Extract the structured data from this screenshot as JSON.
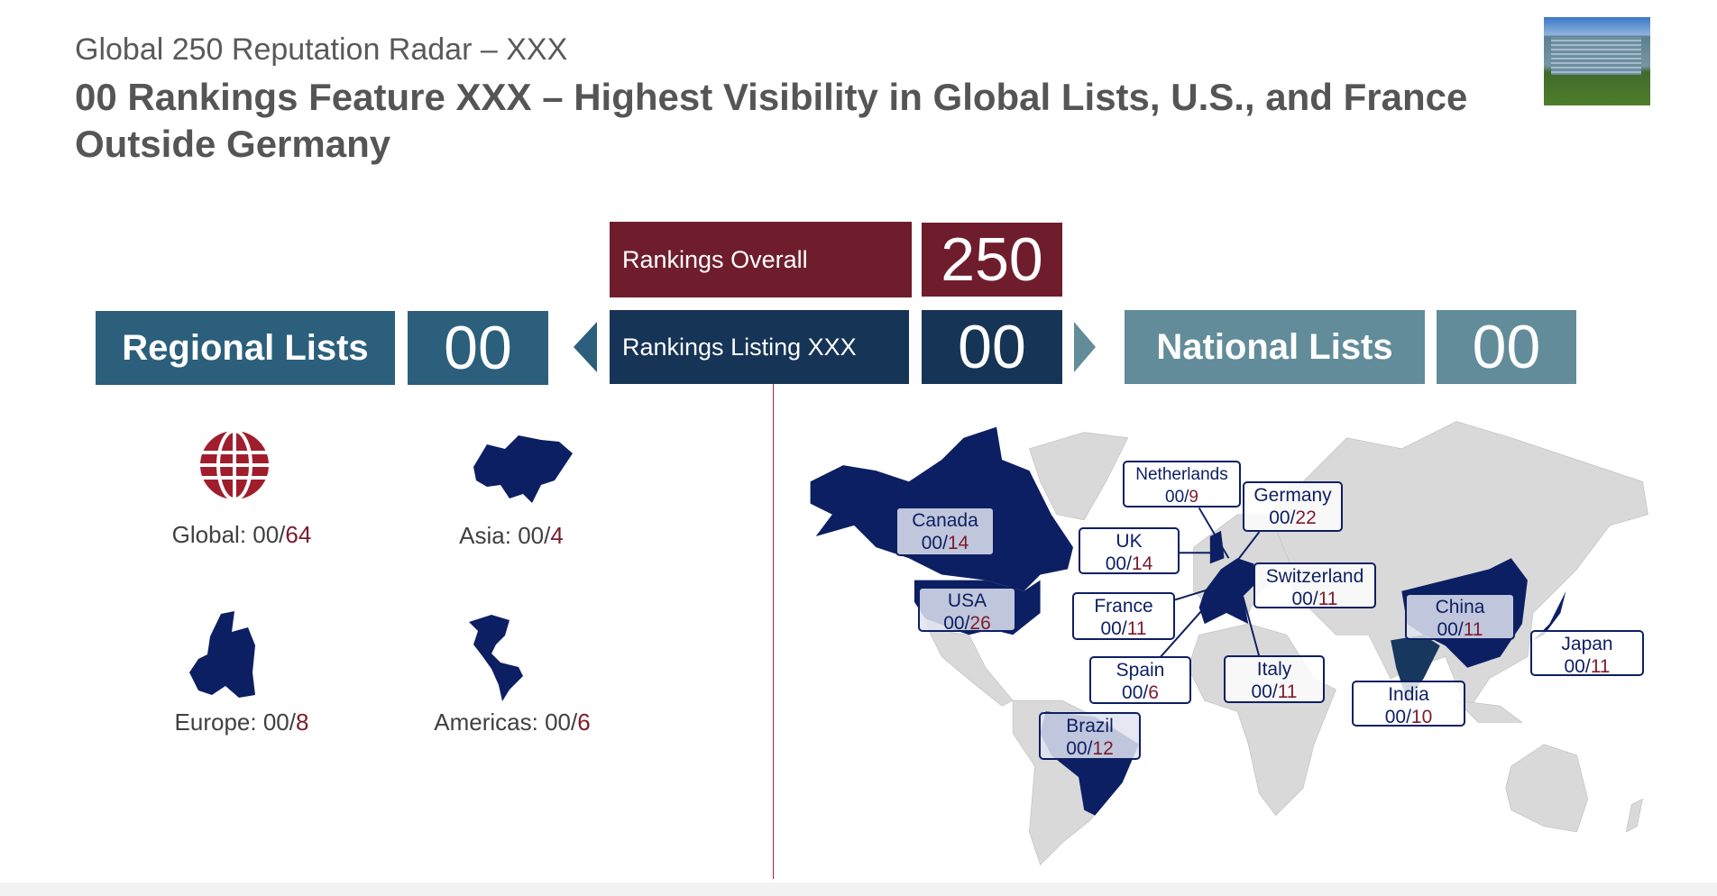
{
  "header": {
    "subtitle": "Global 250 Reputation Radar – XXX",
    "title": "00 Rankings Feature XXX – Highest Visibility in Global Lists, U.S., and France Outside Germany"
  },
  "summary": {
    "overall_label": "Rankings Overall",
    "overall_value": "250",
    "listing_label": "Rankings Listing XXX",
    "listing_value": "00",
    "regional_label": "Regional Lists",
    "regional_value": "00",
    "national_label": "National Lists",
    "national_value": "00"
  },
  "regions": [
    {
      "name": "Global: ",
      "count": "00/",
      "total": "64",
      "icon": "globe-icon"
    },
    {
      "name": "Asia: ",
      "count": "00/",
      "total": "4",
      "icon": "asia-map-icon"
    },
    {
      "name": "Europe: ",
      "count": "00/",
      "total": "8",
      "icon": "europe-map-icon"
    },
    {
      "name": "Americas: ",
      "count": "00/",
      "total": "6",
      "icon": "americas-map-icon"
    }
  ],
  "countries": [
    {
      "name": "Canada",
      "count": "00/",
      "total": "14"
    },
    {
      "name": "USA",
      "count": "00/",
      "total": "26"
    },
    {
      "name": "Netherlands",
      "count": "00/",
      "total": "9"
    },
    {
      "name": "Germany",
      "count": "00/",
      "total": "22"
    },
    {
      "name": "UK",
      "count": "00/",
      "total": "14"
    },
    {
      "name": "Switzerland",
      "count": "00/",
      "total": "11"
    },
    {
      "name": "France",
      "count": "00/",
      "total": "11"
    },
    {
      "name": "China",
      "count": "00/",
      "total": "11"
    },
    {
      "name": "Japan",
      "count": "00/",
      "total": "11"
    },
    {
      "name": "Spain",
      "count": "00/",
      "total": "6"
    },
    {
      "name": "Italy",
      "count": "00/",
      "total": "11"
    },
    {
      "name": "India",
      "count": "00/",
      "total": "10"
    },
    {
      "name": "Brazil",
      "count": "00/",
      "total": "12"
    }
  ],
  "colors": {
    "maroon": "#6f1d2c",
    "navy": "#163456",
    "regional": "#2b5f7c",
    "national": "#628c99",
    "highlight": "#0d1f63"
  }
}
